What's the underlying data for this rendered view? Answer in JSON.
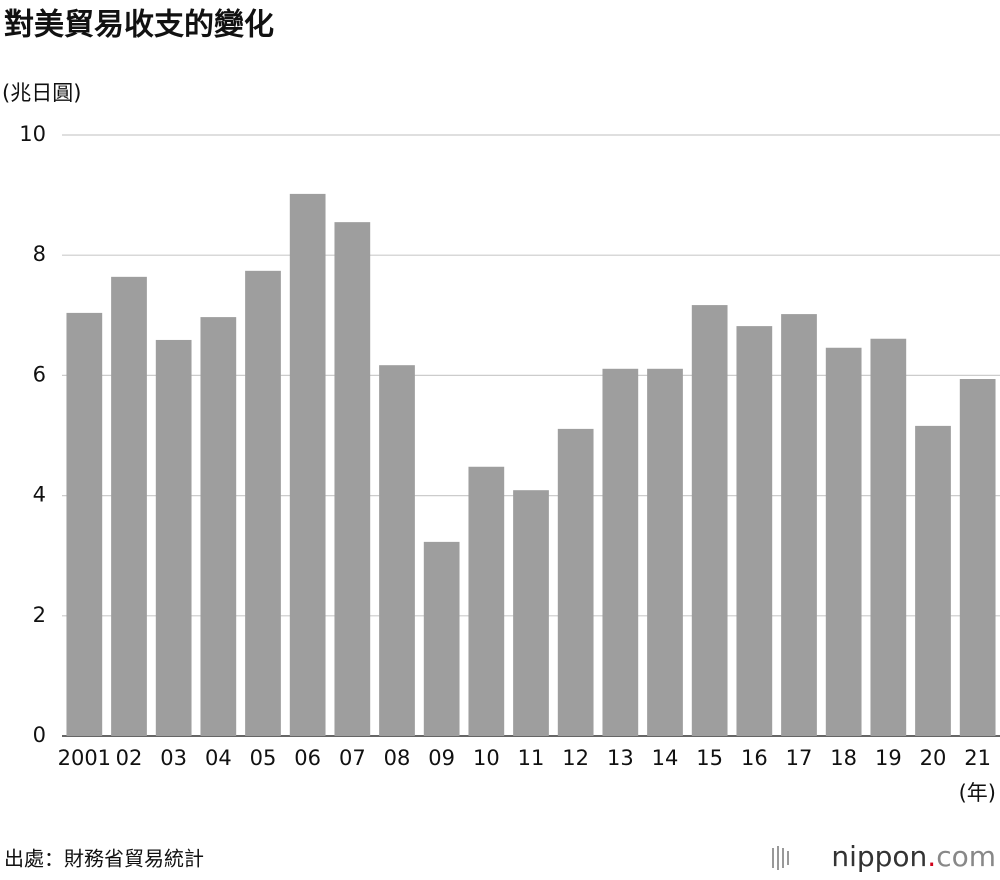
{
  "chart_data": {
    "type": "bar",
    "title": "對美貿易收支的變化",
    "y_label": "(兆日圓)",
    "x_label": "(年)",
    "categories": [
      "2001",
      "02",
      "03",
      "04",
      "05",
      "06",
      "07",
      "08",
      "09",
      "10",
      "11",
      "12",
      "13",
      "14",
      "15",
      "16",
      "17",
      "18",
      "19",
      "20",
      "21"
    ],
    "values": [
      7.04,
      7.64,
      6.59,
      6.97,
      7.74,
      9.02,
      8.55,
      6.17,
      3.23,
      4.48,
      4.09,
      5.11,
      6.11,
      6.11,
      7.17,
      6.82,
      7.02,
      6.46,
      6.61,
      5.16,
      5.94
    ],
    "color": "#9e9e9e",
    "ylim": [
      0,
      10
    ],
    "yticks": [
      0,
      2,
      4,
      6,
      8,
      10
    ],
    "grid": true,
    "source": "出處：財務省貿易統計",
    "brand": [
      "nippon",
      ".",
      "com"
    ]
  }
}
